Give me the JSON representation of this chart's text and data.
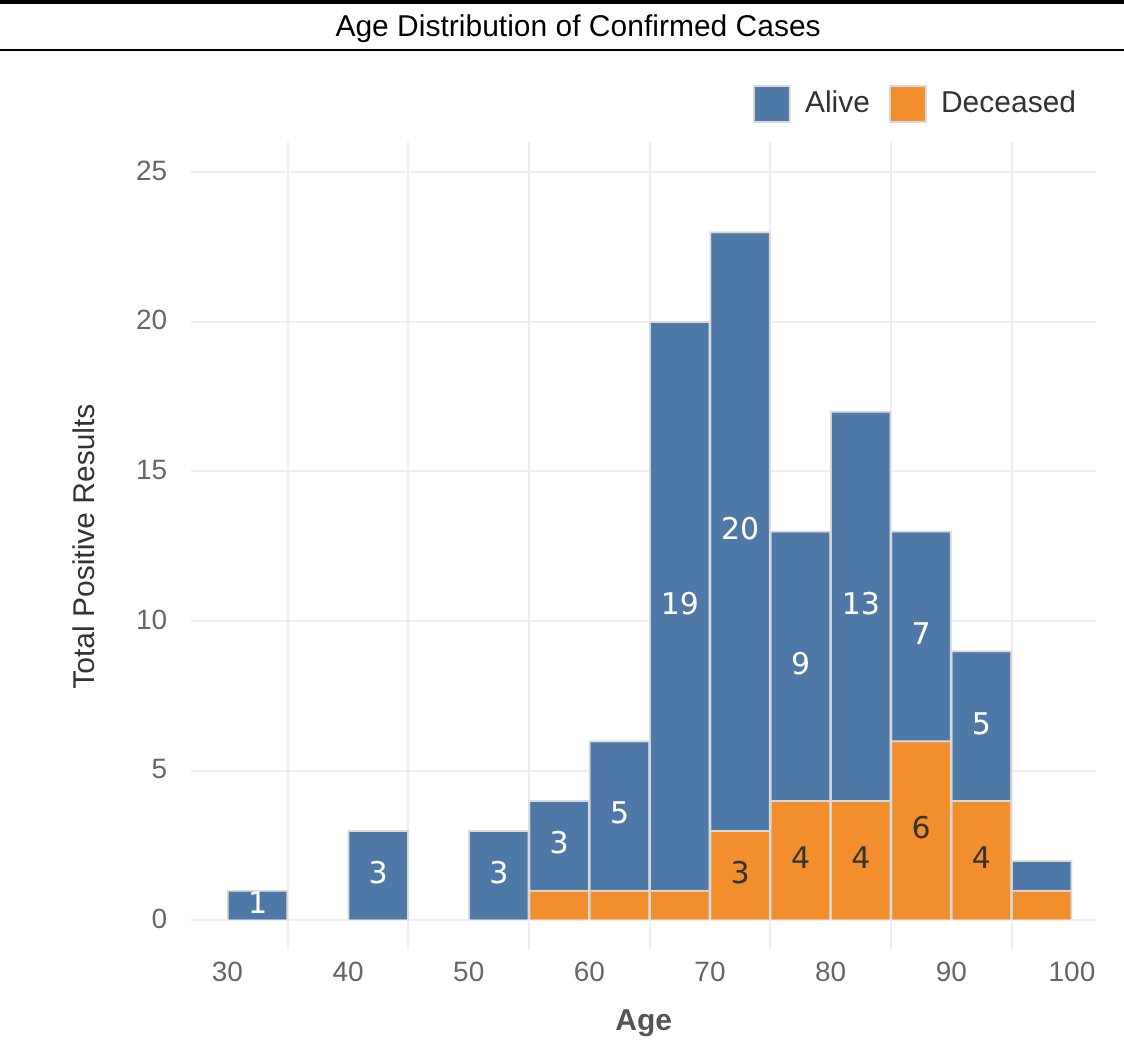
{
  "chart_data": {
    "type": "bar",
    "title": "Age Distribution of Confirmed Cases",
    "xlabel": "Age",
    "ylabel": "Total Positive Results",
    "x": [
      32.5,
      37.5,
      42.5,
      47.5,
      52.5,
      57.5,
      62.5,
      67.5,
      72.5,
      77.5,
      82.5,
      87.5,
      92.5,
      97.5
    ],
    "stacked": true,
    "series": [
      {
        "name": "Deceased",
        "color": "#f28e2b",
        "values": [
          0,
          0,
          0,
          0,
          0,
          1,
          1,
          1,
          3,
          4,
          4,
          6,
          4,
          1
        ],
        "value_labels": [
          null,
          null,
          null,
          null,
          null,
          null,
          null,
          null,
          "3",
          "4",
          "4",
          "6",
          "4",
          null
        ]
      },
      {
        "name": "Alive",
        "color": "#4e79a7",
        "values": [
          1,
          0,
          3,
          0,
          3,
          3,
          5,
          19,
          20,
          9,
          13,
          7,
          5,
          1
        ],
        "value_labels": [
          "1",
          null,
          "3",
          null,
          "3",
          "3",
          "5",
          "19",
          "20",
          "9",
          "13",
          "7",
          "5",
          null
        ]
      }
    ],
    "xlim": [
      27,
      102
    ],
    "xticks": [
      30,
      40,
      50,
      60,
      70,
      80,
      90,
      100
    ],
    "ylim": [
      -1,
      26
    ],
    "yticks": [
      0,
      5,
      10,
      15,
      20,
      25
    ],
    "grid": true,
    "legend": "top right"
  }
}
